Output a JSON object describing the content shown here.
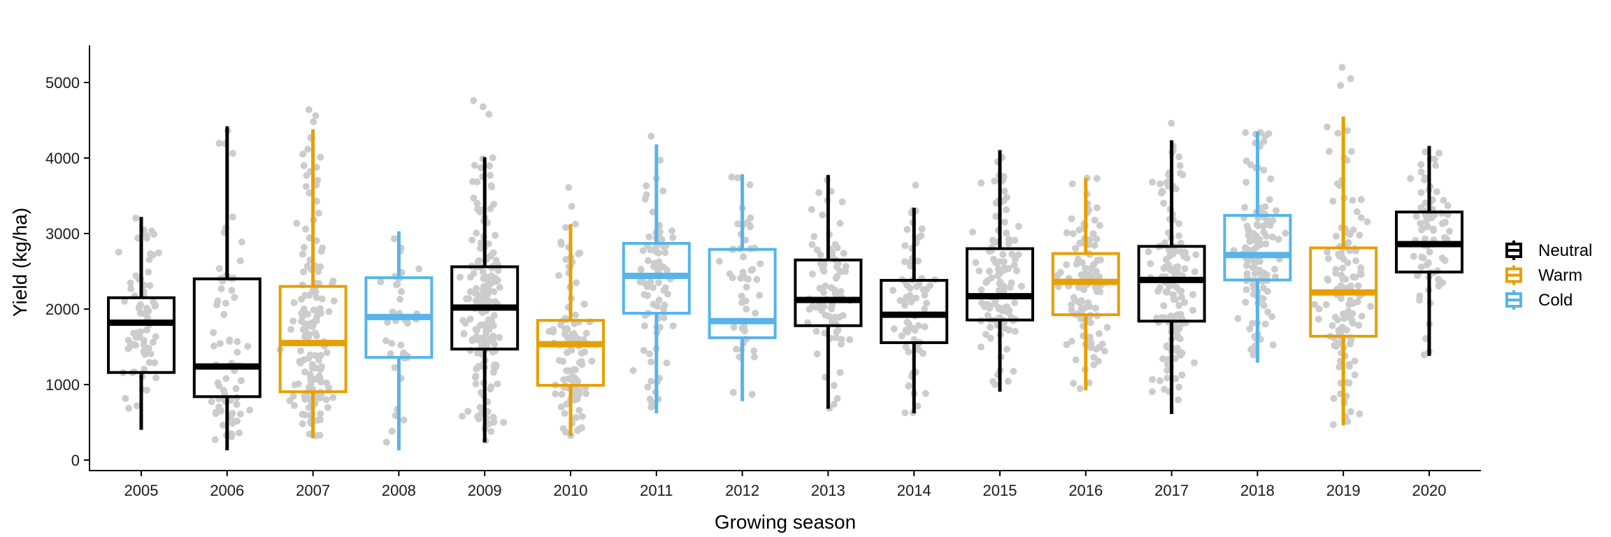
{
  "chart_data": {
    "type": "box",
    "title": "",
    "xlabel": "Growing season",
    "ylabel": "Yield (kg/ha)",
    "ylim": [
      -150,
      5450
    ],
    "yticks": [
      0,
      1000,
      2000,
      3000,
      4000,
      5000
    ],
    "grid": false,
    "legend": {
      "placement": "right",
      "entries": [
        {
          "name": "Neutral",
          "color": "#000000"
        },
        {
          "name": "Warm",
          "color": "#E69F00"
        },
        {
          "name": "Cold",
          "color": "#56B4E9"
        }
      ]
    },
    "point_color": "#CCCCCC",
    "categories": [
      "2005",
      "2006",
      "2007",
      "2008",
      "2009",
      "2010",
      "2011",
      "2012",
      "2013",
      "2014",
      "2015",
      "2016",
      "2017",
      "2018",
      "2019",
      "2020"
    ],
    "series": [
      {
        "year": "2005",
        "phase": "Neutral",
        "whisker_low": 400,
        "q1": 1160,
        "median": 1820,
        "q3": 2150,
        "whisker_high": 3220,
        "n_points": 70
      },
      {
        "year": "2006",
        "phase": "Neutral",
        "whisker_low": 130,
        "q1": 840,
        "median": 1240,
        "q3": 2400,
        "whisker_high": 4420,
        "n_points": 70
      },
      {
        "year": "2007",
        "phase": "Warm",
        "whisker_low": 290,
        "q1": 905,
        "median": 1550,
        "q3": 2300,
        "whisker_high": 4380,
        "n_points": 150,
        "outliers": [
          4480,
          4560,
          4640
        ]
      },
      {
        "year": "2008",
        "phase": "Cold",
        "whisker_low": 130,
        "q1": 1360,
        "median": 1895,
        "q3": 2415,
        "whisker_high": 3030,
        "n_points": 40
      },
      {
        "year": "2009",
        "phase": "Neutral",
        "whisker_low": 235,
        "q1": 1470,
        "median": 2020,
        "q3": 2560,
        "whisker_high": 4010,
        "n_points": 190,
        "outliers": [
          4580,
          4680,
          4760
        ]
      },
      {
        "year": "2010",
        "phase": "Warm",
        "whisker_low": 320,
        "q1": 990,
        "median": 1535,
        "q3": 1850,
        "whisker_high": 3125,
        "n_points": 110,
        "outliers": [
          3360,
          3610
        ]
      },
      {
        "year": "2011",
        "phase": "Cold",
        "whisker_low": 620,
        "q1": 1945,
        "median": 2440,
        "q3": 2870,
        "whisker_high": 4180,
        "n_points": 80,
        "outliers": [
          4290
        ]
      },
      {
        "year": "2012",
        "phase": "Cold",
        "whisker_low": 780,
        "q1": 1620,
        "median": 1840,
        "q3": 2790,
        "whisker_high": 3785,
        "n_points": 50
      },
      {
        "year": "2013",
        "phase": "Neutral",
        "whisker_low": 680,
        "q1": 1780,
        "median": 2120,
        "q3": 2650,
        "whisker_high": 3775,
        "n_points": 80
      },
      {
        "year": "2014",
        "phase": "Neutral",
        "whisker_low": 620,
        "q1": 1555,
        "median": 1925,
        "q3": 2380,
        "whisker_high": 3340,
        "n_points": 70,
        "outliers": [
          3640
        ]
      },
      {
        "year": "2015",
        "phase": "Neutral",
        "whisker_low": 905,
        "q1": 1855,
        "median": 2170,
        "q3": 2800,
        "whisker_high": 4105,
        "n_points": 110
      },
      {
        "year": "2016",
        "phase": "Warm",
        "whisker_low": 925,
        "q1": 1925,
        "median": 2360,
        "q3": 2735,
        "whisker_high": 3735,
        "n_points": 110
      },
      {
        "year": "2017",
        "phase": "Neutral",
        "whisker_low": 610,
        "q1": 1840,
        "median": 2385,
        "q3": 2830,
        "whisker_high": 4235,
        "n_points": 150,
        "outliers": [
          4460
        ]
      },
      {
        "year": "2018",
        "phase": "Cold",
        "whisker_low": 1290,
        "q1": 2385,
        "median": 2715,
        "q3": 3240,
        "whisker_high": 4350,
        "n_points": 130
      },
      {
        "year": "2019",
        "phase": "Warm",
        "whisker_low": 460,
        "q1": 1640,
        "median": 2220,
        "q3": 2810,
        "whisker_high": 4550,
        "n_points": 130,
        "outliers": [
          4960,
          5050,
          5200
        ]
      },
      {
        "year": "2020",
        "phase": "Neutral",
        "whisker_low": 1380,
        "q1": 2490,
        "median": 2860,
        "q3": 3285,
        "whisker_high": 4160,
        "n_points": 80
      }
    ]
  }
}
